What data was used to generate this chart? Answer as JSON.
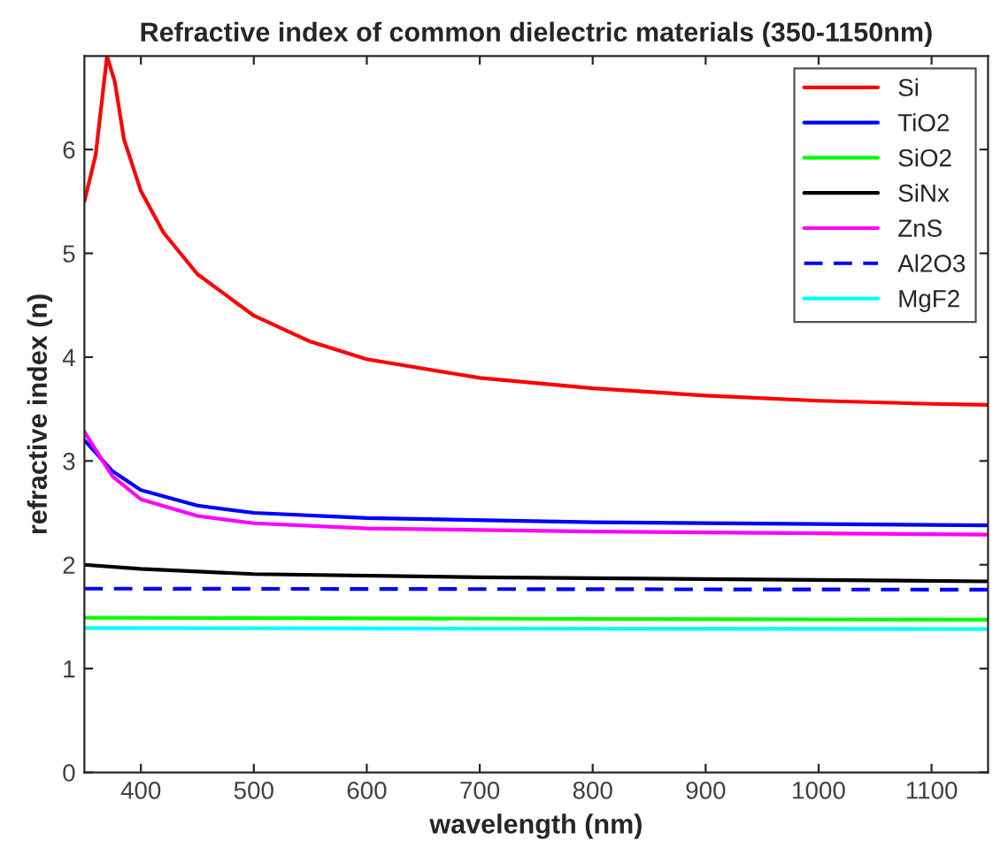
{
  "chart_data": {
    "type": "line",
    "title": "Refractive index of common dielectric materials (350-1150nm)",
    "xlabel": "wavelength (nm)",
    "ylabel": "refractive index (n)",
    "xlim": [
      350,
      1150
    ],
    "xticks": [
      400,
      500,
      600,
      700,
      800,
      900,
      1000,
      1100
    ],
    "ylim": [
      0,
      6.9
    ],
    "yticks": [
      0,
      1,
      2,
      3,
      4,
      5,
      6
    ],
    "grid": false,
    "legend": "top right",
    "series": [
      {
        "name": "Si",
        "color": "#ff0000",
        "x": [
          350,
          360,
          370,
          377,
          385,
          400,
          420,
          450,
          500,
          550,
          600,
          700,
          800,
          900,
          1000,
          1100,
          1150
        ],
        "values": [
          5.5,
          5.95,
          6.9,
          6.65,
          6.1,
          5.6,
          5.2,
          4.8,
          4.4,
          4.15,
          3.98,
          3.8,
          3.7,
          3.63,
          3.58,
          3.55,
          3.54
        ]
      },
      {
        "name": "TiO2",
        "color": "#0000ff",
        "x": [
          350,
          375,
          400,
          450,
          500,
          600,
          800,
          1150
        ],
        "values": [
          3.2,
          2.9,
          2.72,
          2.57,
          2.5,
          2.45,
          2.41,
          2.38
        ]
      },
      {
        "name": "SiO2",
        "color": "#00ff00",
        "x": [
          350,
          1150
        ],
        "values": [
          1.49,
          1.47
        ]
      },
      {
        "name": "SiNx",
        "color": "#000000",
        "x": [
          350,
          400,
          500,
          700,
          1150
        ],
        "values": [
          2.0,
          1.96,
          1.91,
          1.88,
          1.84
        ]
      },
      {
        "name": "ZnS",
        "color": "#ff00ff",
        "x": [
          350,
          375,
          400,
          450,
          500,
          600,
          800,
          1150
        ],
        "values": [
          3.28,
          2.85,
          2.63,
          2.47,
          2.4,
          2.35,
          2.32,
          2.29
        ]
      },
      {
        "name": "Al2O3",
        "color": "#0000ff",
        "line_style": "dashed",
        "x": [
          350,
          1150
        ],
        "values": [
          1.77,
          1.76
        ]
      },
      {
        "name": "MgF2",
        "color": "#00ffff",
        "x": [
          350,
          1150
        ],
        "values": [
          1.39,
          1.38
        ]
      }
    ]
  }
}
